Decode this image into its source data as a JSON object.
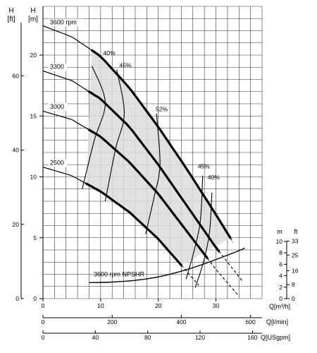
{
  "chart_data": {
    "type": "line",
    "axes": {
      "h_ft_label": "H",
      "h_ft_unit": "[ft]",
      "h_m_label": "H",
      "h_m_unit": "[m]",
      "h_ft_ticks": [
        "0",
        "20",
        "40",
        "60"
      ],
      "h_m_ticks": [
        "0",
        "5",
        "10",
        "15",
        "20"
      ],
      "ylim_m": [
        0,
        24
      ],
      "q_m3h_label": "Q[m³/h]",
      "q_m3h_ticks": [
        "0",
        "10",
        "20",
        "30"
      ],
      "xlim_m3h": [
        0,
        38
      ],
      "q_lmin_label": "Q[l/min]",
      "q_lmin_ticks": [
        "0",
        "200",
        "400",
        "600"
      ],
      "q_usgpm_label": "Q[USgpm]",
      "q_usgpm_ticks": [
        "0",
        "40",
        "80",
        "120",
        "160"
      ],
      "npsh_m_label": "m",
      "npsh_ft_label": "ft",
      "npsh_m_ticks": [
        "0",
        "2",
        "4",
        "6",
        "8",
        "10"
      ],
      "npsh_ft_ticks": [
        "0",
        "8",
        "16",
        "25",
        "33"
      ],
      "grid": true
    },
    "series": [
      {
        "name": "3600 rpm",
        "x": [
          0,
          5,
          10,
          15,
          20,
          25,
          30,
          33
        ],
        "y": [
          22.4,
          21.5,
          19.9,
          17.3,
          14.1,
          10.6,
          6.9,
          4.6
        ],
        "thick": [
          8.5,
          32.5
        ]
      },
      {
        "name": "3300",
        "x": [
          0,
          5,
          10,
          15,
          20,
          25,
          30,
          34.5
        ],
        "y": [
          18.7,
          17.9,
          16.4,
          14.1,
          11.0,
          7.6,
          4.2,
          1.5
        ],
        "thick": [
          8,
          30.5
        ]
      },
      {
        "name": "3000",
        "x": [
          0,
          5,
          10,
          15,
          20,
          25,
          30,
          34
        ],
        "y": [
          15.4,
          14.7,
          13.3,
          11.2,
          8.6,
          5.5,
          2.4,
          0.2
        ],
        "thick": [
          8,
          28.5
        ]
      },
      {
        "name": "2500",
        "x": [
          0,
          5,
          10,
          15,
          20,
          25,
          27
        ],
        "y": [
          10.8,
          10.1,
          8.8,
          7.1,
          4.9,
          2.2,
          1.1
        ],
        "thick": [
          7.5,
          24
        ]
      }
    ],
    "efficiency_labels": [
      {
        "text": "40%",
        "x": 11.5,
        "y": 20.0
      },
      {
        "text": "45%",
        "x": 14.3,
        "y": 19.0
      },
      {
        "text": "52%",
        "x": 20.6,
        "y": 15.4
      },
      {
        "text": "45%",
        "x": 27.9,
        "y": 10.7
      },
      {
        "text": "40%",
        "x": 29.6,
        "y": 9.8
      }
    ],
    "efficiency_lines": [
      {
        "x": [
          8.5,
          10.8,
          8.9,
          6.8
        ],
        "y": [
          19.1,
          16.1,
          13.0,
          9.0
        ]
      },
      {
        "x": [
          12.8,
          14.1,
          12.6,
          10.8
        ],
        "y": [
          18.8,
          15.2,
          12.3,
          8.0
        ]
      },
      {
        "x": [
          19.7,
          20.3,
          19.3,
          17.8
        ],
        "y": [
          15.2,
          11.0,
          8.4,
          5.3
        ]
      },
      {
        "x": [
          27.7,
          27.3,
          26.2,
          24.8
        ],
        "y": [
          10.1,
          6.4,
          3.9,
          1.6
        ]
      },
      {
        "x": [
          29.3,
          28.9,
          27.9,
          26.4
        ],
        "y": [
          8.7,
          5.5,
          3.1,
          0.9
        ]
      }
    ],
    "npshr": {
      "name": "3600 rpm NPSHR",
      "ylim_m": [
        0,
        10
      ],
      "x": [
        8,
        12,
        16,
        20,
        24,
        28,
        32,
        35
      ],
      "y": [
        2.8,
        2.9,
        3.2,
        3.8,
        4.8,
        6.1,
        7.6,
        8.8
      ]
    }
  }
}
